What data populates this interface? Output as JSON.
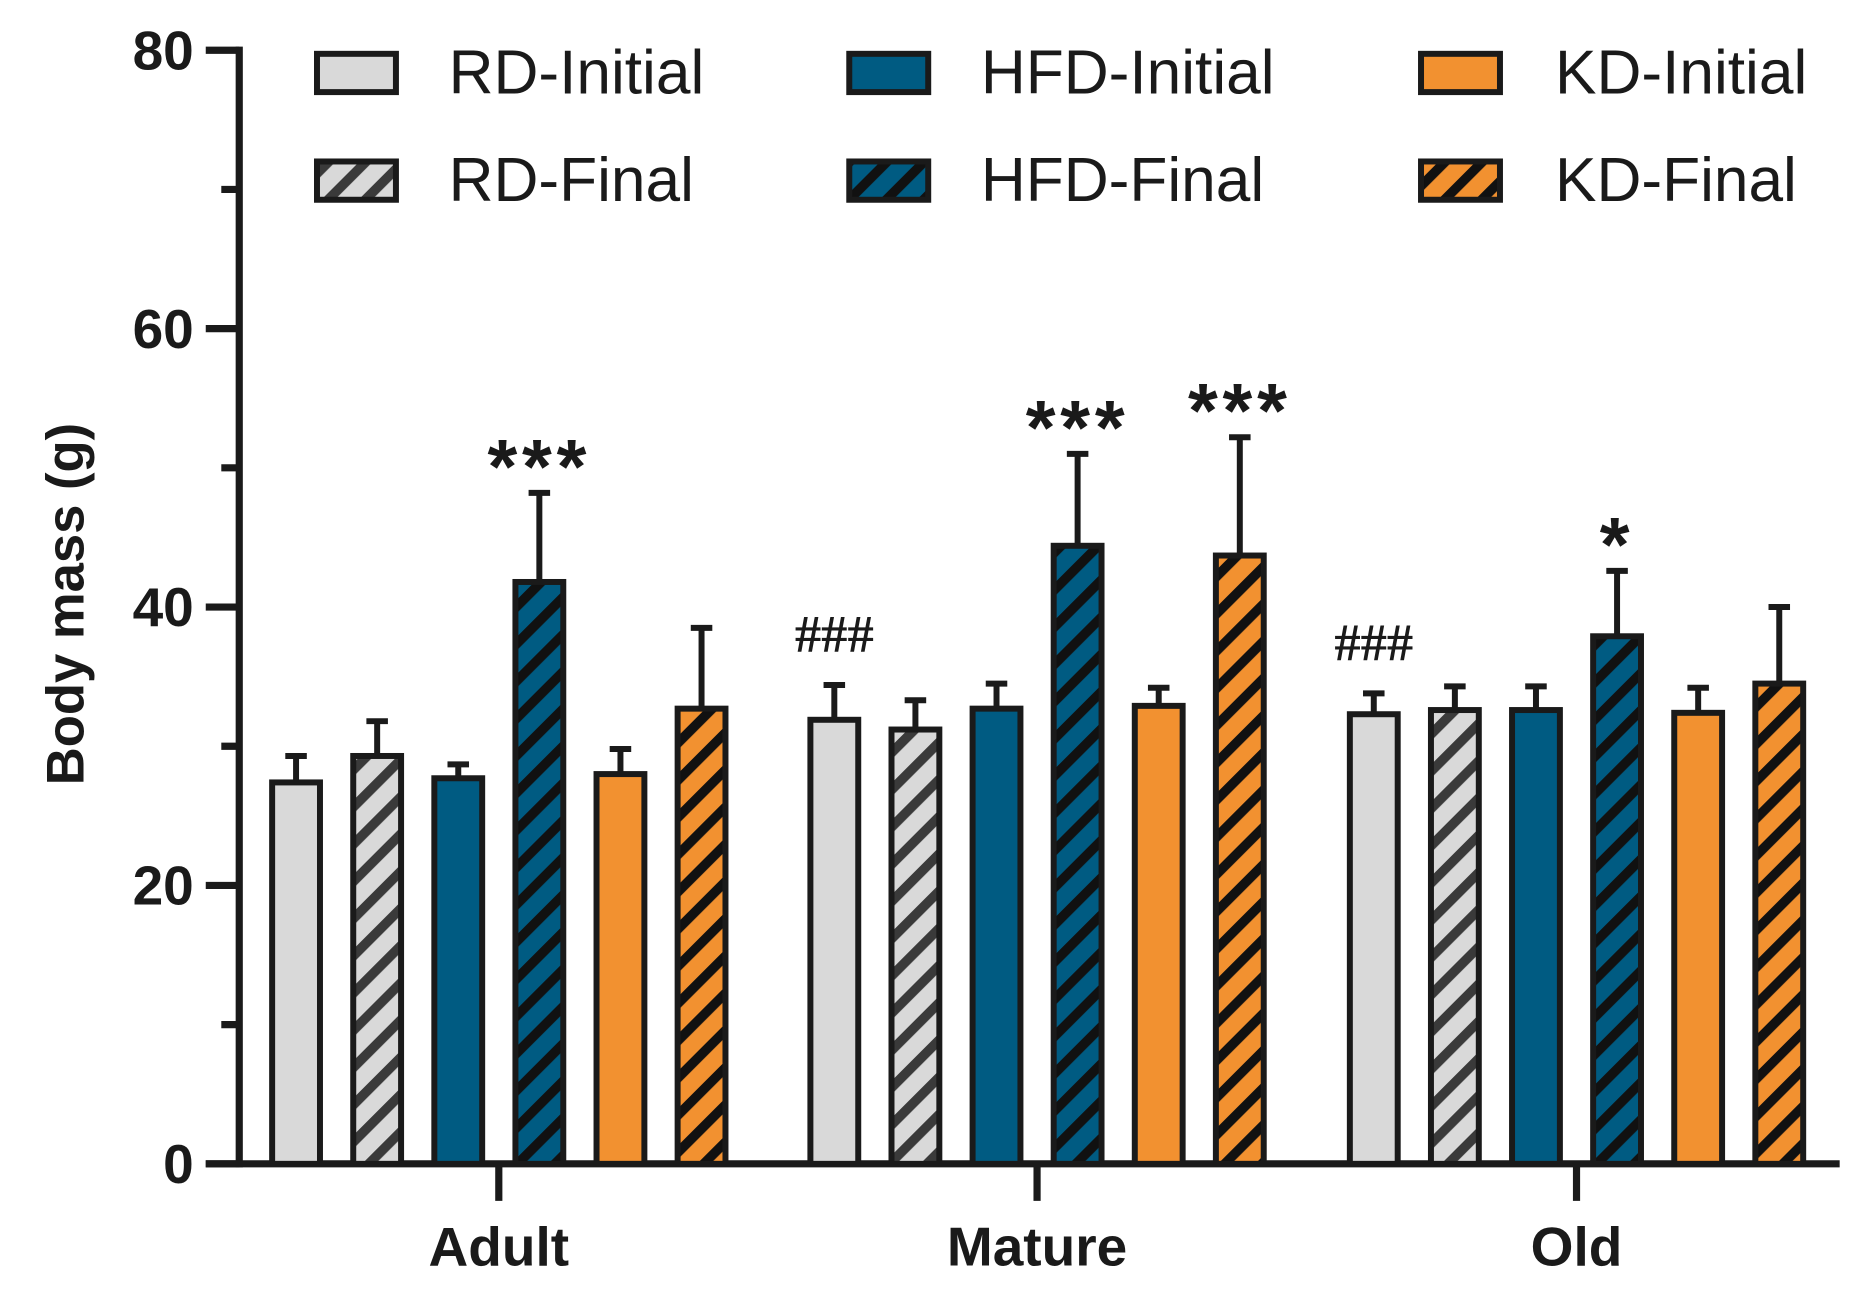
{
  "chart_data": {
    "type": "bar",
    "title": "",
    "xlabel": "",
    "ylabel": "Body mass (g)",
    "ylim": [
      0,
      80
    ],
    "yticks": [
      "0",
      "20",
      "40",
      "60",
      "80"
    ],
    "categories": [
      "Adult",
      "Mature",
      "Old"
    ],
    "colors": {
      "RD": "#d9d9d9",
      "RD_hatch": "#3a3a3a",
      "HFD": "#005b82",
      "KD": "#f29130",
      "stroke": "#1a1a1a"
    },
    "series": [
      {
        "name": "RD-Initial",
        "diet": "RD",
        "hatched": false,
        "values": [
          27.4,
          31.9,
          32.3
        ],
        "error_top": [
          29.3,
          34.4,
          33.8
        ]
      },
      {
        "name": "RD-Final",
        "diet": "RD",
        "hatched": true,
        "values": [
          29.3,
          31.2,
          32.6
        ],
        "error_top": [
          31.8,
          33.3,
          34.3
        ]
      },
      {
        "name": "HFD-Initial",
        "diet": "HFD",
        "hatched": false,
        "values": [
          27.7,
          32.7,
          32.6
        ],
        "error_top": [
          28.7,
          34.5,
          34.3
        ]
      },
      {
        "name": "HFD-Final",
        "diet": "HFD",
        "hatched": true,
        "values": [
          41.8,
          44.4,
          37.9
        ],
        "error_top": [
          48.2,
          51.0,
          42.6
        ]
      },
      {
        "name": "KD-Initial",
        "diet": "KD",
        "hatched": false,
        "values": [
          28.0,
          32.9,
          32.4
        ],
        "error_top": [
          29.8,
          34.2,
          34.2
        ]
      },
      {
        "name": "KD-Final",
        "diet": "KD",
        "hatched": true,
        "values": [
          32.7,
          43.7,
          34.5
        ],
        "error_top": [
          38.5,
          52.2,
          40.0
        ]
      }
    ],
    "annotations": [
      {
        "text": "***",
        "category": "Adult",
        "series": "HFD-Final"
      },
      {
        "text": "###",
        "category": "Mature",
        "series": "RD-Initial"
      },
      {
        "text": "***",
        "category": "Mature",
        "series": "HFD-Final"
      },
      {
        "text": "***",
        "category": "Mature",
        "series": "KD-Final"
      },
      {
        "text": "###",
        "category": "Old",
        "series": "RD-Initial"
      },
      {
        "text": "*",
        "category": "Old",
        "series": "HFD-Final"
      }
    ],
    "legend": {
      "placement": "top",
      "columns": 3
    }
  }
}
